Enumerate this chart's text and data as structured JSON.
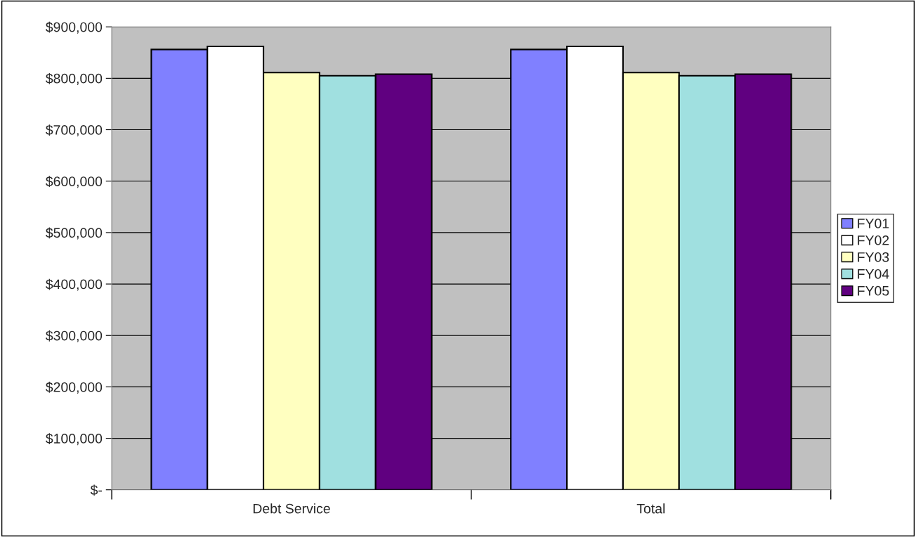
{
  "chart_data": {
    "type": "bar",
    "categories": [
      "Debt Service",
      "Total"
    ],
    "series": [
      {
        "name": "FY01",
        "color": "#8080ff",
        "values": [
          856000,
          856000
        ]
      },
      {
        "name": "FY02",
        "color": "#ffffff",
        "values": [
          862000,
          862000
        ]
      },
      {
        "name": "FY03",
        "color": "#ffffc0",
        "values": [
          811000,
          811000
        ]
      },
      {
        "name": "FY04",
        "color": "#a0e0e0",
        "values": [
          805000,
          805000
        ]
      },
      {
        "name": "FY05",
        "color": "#600080",
        "values": [
          808000,
          808000
        ]
      }
    ],
    "ylim": [
      0,
      900000
    ],
    "yticks": [
      {
        "value": 0,
        "label": "$-"
      },
      {
        "value": 100000,
        "label": "$100,000"
      },
      {
        "value": 200000,
        "label": "$200,000"
      },
      {
        "value": 300000,
        "label": "$300,000"
      },
      {
        "value": 400000,
        "label": "$400,000"
      },
      {
        "value": 500000,
        "label": "$500,000"
      },
      {
        "value": 600000,
        "label": "$600,000"
      },
      {
        "value": 700000,
        "label": "$700,000"
      },
      {
        "value": 800000,
        "label": "$800,000"
      },
      {
        "value": 900000,
        "label": "$900,000"
      }
    ],
    "grid": "y",
    "legend": "right"
  }
}
